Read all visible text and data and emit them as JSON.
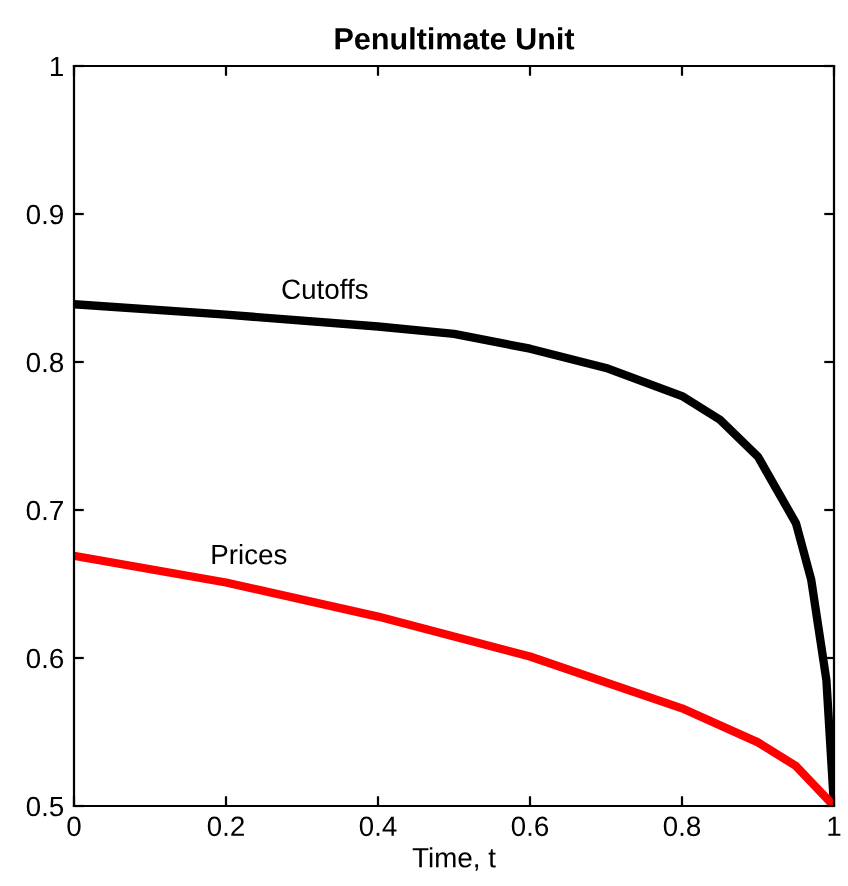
{
  "chart_data": {
    "type": "line",
    "title": "Penultimate Unit",
    "xlabel": "Time, t",
    "xlim": [
      0,
      1
    ],
    "xticks": [
      0,
      0.2,
      0.4,
      0.6,
      0.8,
      1
    ],
    "ylim": [
      0.5,
      1
    ],
    "yticks": [
      0.5,
      0.6,
      0.7,
      0.8,
      0.9,
      1
    ],
    "grid": false,
    "legend": false,
    "marker": "none",
    "line_style": "solid",
    "series": [
      {
        "name": "Cutoffs",
        "color": "#000000",
        "x": [
          0,
          0.2,
          0.4,
          0.5,
          0.6,
          0.7,
          0.8,
          0.85,
          0.9,
          0.95,
          0.97,
          0.99,
          1
        ],
        "values": [
          0.839,
          0.832,
          0.824,
          0.819,
          0.809,
          0.796,
          0.777,
          0.761,
          0.736,
          0.691,
          0.653,
          0.585,
          0.5
        ]
      },
      {
        "name": "Prices",
        "color": "#ff0000",
        "x": [
          0,
          0.2,
          0.4,
          0.6,
          0.8,
          0.9,
          0.95,
          1
        ],
        "values": [
          0.669,
          0.651,
          0.628,
          0.601,
          0.566,
          0.543,
          0.527,
          0.5
        ]
      }
    ]
  }
}
